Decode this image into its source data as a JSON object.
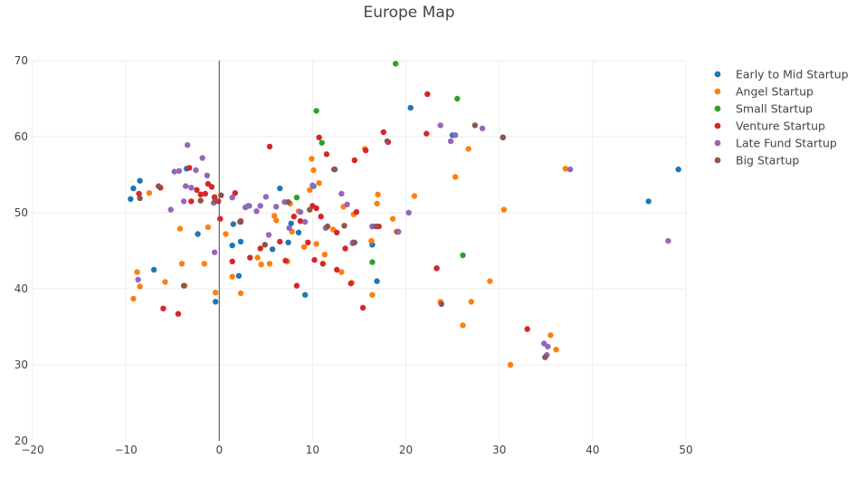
{
  "chart_data": {
    "type": "scatter",
    "title": "Europe Map",
    "xlabel": "",
    "ylabel": "",
    "xlim": [
      -20,
      50
    ],
    "ylim": [
      20,
      70
    ],
    "x_ticks": [
      -20,
      -10,
      0,
      10,
      20,
      30,
      40,
      50
    ],
    "y_ticks": [
      20,
      30,
      40,
      50,
      60,
      70
    ],
    "grid": true,
    "legend_position": "top-right",
    "series": [
      {
        "name": "Early to Mid Startup",
        "color": "#1f77b4",
        "points": [
          [
            -9.5,
            51.8
          ],
          [
            -9.2,
            53.2
          ],
          [
            -8.5,
            54.2
          ],
          [
            -7,
            42.5
          ],
          [
            -3.5,
            55.8
          ],
          [
            -2.3,
            47.2
          ],
          [
            -0.4,
            38.3
          ],
          [
            1.4,
            45.7
          ],
          [
            1.5,
            48.5
          ],
          [
            2.1,
            41.7
          ],
          [
            2.3,
            46.2
          ],
          [
            3.2,
            50.9
          ],
          [
            5.7,
            45.2
          ],
          [
            6.5,
            53.2
          ],
          [
            7.4,
            46.1
          ],
          [
            7.7,
            48.6
          ],
          [
            8.5,
            47.4
          ],
          [
            9.2,
            39.2
          ],
          [
            10.1,
            53.5
          ],
          [
            16.4,
            45.8
          ],
          [
            16.9,
            41.0
          ],
          [
            20.5,
            63.8
          ],
          [
            23.3,
            42.7
          ],
          [
            25,
            60.2
          ],
          [
            46,
            51.5
          ],
          [
            49.2,
            55.7
          ]
        ]
      },
      {
        "name": "Angel Startup",
        "color": "#ff7f0e",
        "points": [
          [
            -9.2,
            38.7
          ],
          [
            -8.8,
            42.2
          ],
          [
            -8.5,
            40.3
          ],
          [
            -7.5,
            52.6
          ],
          [
            -5.8,
            40.9
          ],
          [
            -4.2,
            47.9
          ],
          [
            -4,
            43.3
          ],
          [
            -3.7,
            40.4
          ],
          [
            -1.6,
            43.3
          ],
          [
            -1.2,
            48.1
          ],
          [
            -0.5,
            52.1
          ],
          [
            -0.4,
            39.5
          ],
          [
            0.7,
            47.2
          ],
          [
            1.4,
            41.6
          ],
          [
            2.2,
            48.8
          ],
          [
            2.3,
            39.4
          ],
          [
            4.1,
            44.1
          ],
          [
            4.5,
            43.2
          ],
          [
            5.4,
            43.3
          ],
          [
            5.9,
            49.6
          ],
          [
            6.1,
            49.0
          ],
          [
            7.3,
            43.6
          ],
          [
            7.6,
            51.2
          ],
          [
            7.8,
            47.5
          ],
          [
            8.5,
            50.2
          ],
          [
            9.1,
            45.5
          ],
          [
            9.7,
            53.0
          ],
          [
            9.9,
            57.1
          ],
          [
            10.1,
            55.6
          ],
          [
            10.4,
            45.9
          ],
          [
            10.7,
            53.9
          ],
          [
            11.3,
            44.5
          ],
          [
            11.6,
            48.2
          ],
          [
            12.2,
            47.8
          ],
          [
            13.1,
            42.2
          ],
          [
            13.3,
            50.8
          ],
          [
            14.2,
            40.8
          ],
          [
            14.4,
            49.8
          ],
          [
            15.6,
            58.4
          ],
          [
            16.3,
            46.3
          ],
          [
            16.4,
            39.2
          ],
          [
            16.9,
            51.2
          ],
          [
            17,
            52.4
          ],
          [
            18.6,
            49.2
          ],
          [
            19.0,
            47.5
          ],
          [
            20.9,
            52.2
          ],
          [
            23.7,
            38.3
          ],
          [
            25.3,
            54.7
          ],
          [
            26.1,
            35.2
          ],
          [
            26.7,
            58.4
          ],
          [
            27,
            38.3
          ],
          [
            29,
            41.0
          ],
          [
            30.5,
            50.4
          ],
          [
            31.2,
            30.0
          ],
          [
            35.5,
            33.9
          ],
          [
            36.1,
            32.0
          ],
          [
            37.1,
            55.8
          ]
        ]
      },
      {
        "name": "Small Startup",
        "color": "#2ca02c",
        "points": [
          [
            10.4,
            63.4
          ],
          [
            11,
            59.2
          ],
          [
            8.3,
            52.0
          ],
          [
            16.4,
            43.5
          ],
          [
            18.9,
            69.6
          ],
          [
            25.5,
            65.0
          ],
          [
            26.1,
            44.4
          ]
        ]
      },
      {
        "name": "Venture Startup",
        "color": "#d62728",
        "points": [
          [
            -8.6,
            52.5
          ],
          [
            -6.3,
            53.3
          ],
          [
            -6,
            37.4
          ],
          [
            -4.4,
            36.7
          ],
          [
            -3.2,
            55.9
          ],
          [
            -3,
            51.5
          ],
          [
            -2.4,
            53.0
          ],
          [
            -2,
            52.4
          ],
          [
            -1.5,
            52.5
          ],
          [
            -1.2,
            53.8
          ],
          [
            -0.8,
            53.4
          ],
          [
            -0.5,
            52.0
          ],
          [
            -0.1,
            51.5
          ],
          [
            0.1,
            49.2
          ],
          [
            1.4,
            43.6
          ],
          [
            1.7,
            52.6
          ],
          [
            2.3,
            48.9
          ],
          [
            3.3,
            44.1
          ],
          [
            4.4,
            45.3
          ],
          [
            5.4,
            58.7
          ],
          [
            6.5,
            46.2
          ],
          [
            7.1,
            43.7
          ],
          [
            8,
            49.5
          ],
          [
            8.3,
            40.4
          ],
          [
            8.7,
            48.9
          ],
          [
            9.5,
            46.1
          ],
          [
            10,
            50.9
          ],
          [
            10.2,
            43.8
          ],
          [
            10.4,
            50.6
          ],
          [
            10.7,
            59.9
          ],
          [
            10.9,
            49.5
          ],
          [
            11.1,
            43.3
          ],
          [
            11.5,
            57.7
          ],
          [
            12.6,
            47.4
          ],
          [
            12.6,
            42.5
          ],
          [
            13.5,
            45.3
          ],
          [
            14.5,
            56.9
          ],
          [
            14.1,
            40.7
          ],
          [
            14.3,
            46.0
          ],
          [
            14.7,
            50.1
          ],
          [
            15.4,
            37.5
          ],
          [
            15.7,
            58.2
          ],
          [
            16.4,
            48.2
          ],
          [
            17.1,
            48.2
          ],
          [
            17.6,
            60.6
          ],
          [
            18.1,
            59.3
          ],
          [
            19.1,
            47.5
          ],
          [
            22.2,
            60.4
          ],
          [
            22.3,
            65.6
          ],
          [
            23.3,
            42.7
          ],
          [
            30.4,
            59.9
          ],
          [
            33,
            34.7
          ]
        ]
      },
      {
        "name": "Late Fund Startup",
        "color": "#9467bd",
        "points": [
          [
            -8.7,
            41.2
          ],
          [
            -5.2,
            50.4
          ],
          [
            -4.8,
            55.4
          ],
          [
            -4.3,
            55.5
          ],
          [
            -3.8,
            51.5
          ],
          [
            -3.6,
            53.5
          ],
          [
            -3.4,
            58.9
          ],
          [
            -3,
            53.3
          ],
          [
            -2.5,
            55.6
          ],
          [
            -1.8,
            57.2
          ],
          [
            -1.3,
            54.9
          ],
          [
            -0.6,
            51.3
          ],
          [
            -0.5,
            44.8
          ],
          [
            1.4,
            52.0
          ],
          [
            2.8,
            50.7
          ],
          [
            3.1,
            50.9
          ],
          [
            4,
            50.2
          ],
          [
            4.4,
            50.9
          ],
          [
            5,
            52.1
          ],
          [
            5.3,
            47.1
          ],
          [
            6.1,
            50.8
          ],
          [
            7,
            51.4
          ],
          [
            7.5,
            48.0
          ],
          [
            8.7,
            50.1
          ],
          [
            9.2,
            48.8
          ],
          [
            10,
            53.6
          ],
          [
            11.4,
            48.0
          ],
          [
            12.4,
            55.7
          ],
          [
            13.1,
            52.5
          ],
          [
            13.7,
            51.1
          ],
          [
            14.3,
            46.1
          ],
          [
            16.4,
            48.2
          ],
          [
            19.2,
            47.5
          ],
          [
            20.3,
            50.0
          ],
          [
            23.7,
            61.5
          ],
          [
            24.8,
            59.4
          ],
          [
            25.3,
            60.2
          ],
          [
            28.2,
            61.1
          ],
          [
            35.2,
            32.4
          ],
          [
            35.1,
            31.3
          ],
          [
            34.8,
            32.8
          ],
          [
            37.6,
            55.7
          ],
          [
            48.1,
            46.3
          ]
        ]
      },
      {
        "name": "Big Startup",
        "color": "#8c564b",
        "points": [
          [
            -8.5,
            51.9
          ],
          [
            -6.5,
            53.5
          ],
          [
            -3.8,
            40.4
          ],
          [
            -2,
            51.6
          ],
          [
            -0.4,
            51.6
          ],
          [
            0.2,
            52.3
          ],
          [
            2.3,
            48.8
          ],
          [
            4.9,
            45.8
          ],
          [
            7.4,
            51.4
          ],
          [
            9.7,
            50.4
          ],
          [
            11.6,
            48.2
          ],
          [
            12.3,
            55.7
          ],
          [
            13.4,
            48.3
          ],
          [
            14.5,
            46.1
          ],
          [
            16.8,
            48.2
          ],
          [
            18,
            59.4
          ],
          [
            23.8,
            38.0
          ],
          [
            27.4,
            61.5
          ],
          [
            30.4,
            59.9
          ],
          [
            34.9,
            31.0
          ]
        ]
      }
    ]
  }
}
